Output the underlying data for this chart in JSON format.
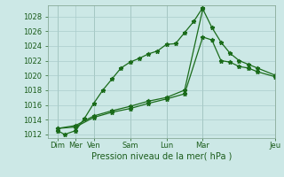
{
  "background_color": "#cce8e6",
  "grid_color": "#aacccc",
  "line_color": "#1a6b1a",
  "xlabel": "Pression niveau de la mer( hPa )",
  "ylim": [
    1011.5,
    1029.5
  ],
  "xlim": [
    0,
    12.5
  ],
  "x_vlines": [
    0.5,
    2.5,
    4.5,
    6.5,
    8.5,
    12.5
  ],
  "tick_positions": [
    0.5,
    1.5,
    2.5,
    4.5,
    6.5,
    8.5,
    12.5
  ],
  "tick_labels": [
    "Dim",
    "Mer",
    "Ven",
    "Sam",
    "Lun",
    "Mar",
    "Jeu"
  ],
  "series1": {
    "x": [
      0.5,
      0.9,
      1.5,
      2.0,
      2.5,
      3.0,
      3.5,
      4.0,
      4.5,
      5.0,
      5.5,
      6.0,
      6.5,
      7.0,
      7.5,
      8.0,
      8.5
    ],
    "y": [
      1012.5,
      1012.0,
      1012.5,
      1014.2,
      1016.2,
      1018.0,
      1019.5,
      1021.0,
      1021.8,
      1022.3,
      1022.9,
      1023.3,
      1024.2,
      1024.3,
      1025.8,
      1027.3,
      1029.2
    ]
  },
  "series2": {
    "x": [
      0.5,
      1.5,
      2.5,
      3.5,
      4.5,
      5.5,
      6.5,
      7.5,
      8.5,
      9.0,
      9.5,
      10.0,
      10.5,
      11.0,
      11.5,
      12.5
    ],
    "y": [
      1012.8,
      1013.0,
      1014.3,
      1015.0,
      1015.5,
      1016.2,
      1016.8,
      1017.5,
      1025.2,
      1024.8,
      1022.0,
      1021.8,
      1021.2,
      1021.0,
      1020.5,
      1019.8
    ]
  },
  "series3": {
    "x": [
      0.5,
      1.5,
      2.5,
      3.5,
      4.5,
      5.5,
      6.5,
      7.5,
      8.5,
      9.0,
      9.5,
      10.0,
      10.5,
      11.0,
      11.5,
      12.5
    ],
    "y": [
      1012.8,
      1013.2,
      1014.5,
      1015.2,
      1015.8,
      1016.5,
      1017.0,
      1018.0,
      1029.0,
      1026.5,
      1024.5,
      1023.0,
      1022.0,
      1021.5,
      1021.0,
      1020.0
    ]
  }
}
